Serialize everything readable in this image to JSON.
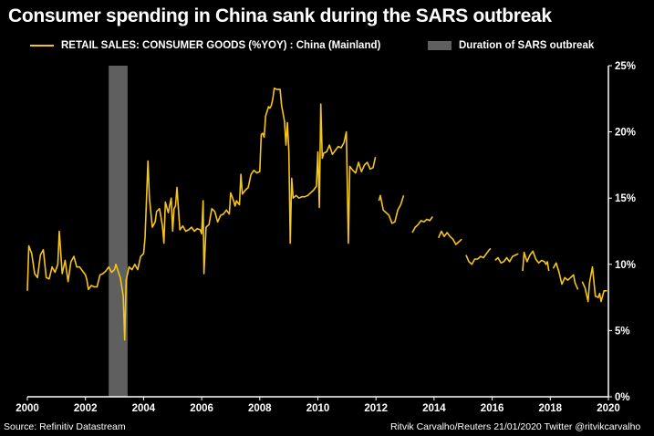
{
  "title": "Consumer spending in China sank during the SARS outbreak",
  "legend": {
    "series_label": "RETAIL SALES: CONSUMER GOODS (%YOY) : China (Mainland)",
    "shade_label": "Duration of SARS outbreak"
  },
  "footer": {
    "source": "Source: Refinitiv Datastream",
    "credit": "Ritvik Carvalho/Reuters 21/01/2020 Twitter @ritvikcarvalho"
  },
  "colors": {
    "line": "#f5c518",
    "shade": "#5f5f5f",
    "background": "#000000",
    "axis": "#ffffff"
  },
  "chart_data": {
    "type": "line",
    "title": "Consumer spending in China sank during the SARS outbreak",
    "xlabel": "",
    "ylabel": "",
    "xlim": [
      2000,
      2020
    ],
    "ylim": [
      0,
      25
    ],
    "x_ticks": [
      2000,
      2002,
      2004,
      2006,
      2008,
      2010,
      2012,
      2014,
      2016,
      2018,
      2020
    ],
    "x_tick_labels": [
      "2000",
      "2002",
      "2004",
      "2006",
      "2008",
      "2010",
      "2012",
      "2014",
      "2016",
      "2018",
      "2020"
    ],
    "y_ticks": [
      0,
      5,
      10,
      15,
      20,
      25
    ],
    "y_tick_labels": [
      "0%",
      "5%",
      "10%",
      "15%",
      "20%",
      "25%"
    ],
    "y_axis_side": "right",
    "shaded_regions": [
      {
        "label": "Duration of SARS outbreak",
        "start": 2002.8,
        "end": 2003.45
      }
    ],
    "series": [
      {
        "name": "RETAIL SALES: CONSUMER GOODS (%YOY) : China (Mainland)",
        "segments": [
          [
            [
              2000.0,
              8.0
            ],
            [
              2000.05,
              11.4
            ],
            [
              2000.15,
              10.8
            ],
            [
              2000.25,
              9.3
            ],
            [
              2000.35,
              9.0
            ],
            [
              2000.45,
              10.7
            ],
            [
              2000.55,
              11.1
            ],
            [
              2000.65,
              9.0
            ],
            [
              2000.75,
              8.9
            ],
            [
              2000.85,
              9.8
            ],
            [
              2000.95,
              9.4
            ],
            [
              2001.05,
              10.0
            ],
            [
              2001.1,
              12.5
            ],
            [
              2001.2,
              9.3
            ],
            [
              2001.3,
              10.3
            ],
            [
              2001.4,
              8.7
            ],
            [
              2001.5,
              10.2
            ],
            [
              2001.6,
              10.6
            ],
            [
              2001.7,
              9.8
            ],
            [
              2001.8,
              9.8
            ],
            [
              2001.9,
              9.5
            ],
            [
              2002.0,
              9.2
            ],
            [
              2002.05,
              8.8
            ],
            [
              2002.1,
              8.1
            ],
            [
              2002.2,
              8.4
            ],
            [
              2002.3,
              8.3
            ],
            [
              2002.4,
              8.3
            ],
            [
              2002.5,
              9.2
            ],
            [
              2002.6,
              9.3
            ],
            [
              2002.7,
              9.5
            ],
            [
              2002.8,
              9.8
            ],
            [
              2002.9,
              9.4
            ],
            [
              2003.0,
              9.6
            ],
            [
              2003.05,
              10.0
            ],
            [
              2003.15,
              9.3
            ],
            [
              2003.2,
              9.0
            ],
            [
              2003.25,
              8.3
            ],
            [
              2003.3,
              7.6
            ],
            [
              2003.35,
              4.3
            ],
            [
              2003.4,
              8.8
            ],
            [
              2003.5,
              9.8
            ],
            [
              2003.6,
              9.6
            ],
            [
              2003.7,
              10.0
            ],
            [
              2003.8,
              9.6
            ],
            [
              2003.9,
              10.6
            ],
            [
              2004.0,
              10.8
            ],
            [
              2004.05,
              12.0
            ],
            [
              2004.15,
              17.8
            ],
            [
              2004.2,
              15.0
            ],
            [
              2004.3,
              12.8
            ],
            [
              2004.4,
              13.2
            ],
            [
              2004.45,
              14.0
            ],
            [
              2004.55,
              14.2
            ],
            [
              2004.65,
              12.9
            ],
            [
              2004.7,
              11.6
            ],
            [
              2004.75,
              14.7
            ],
            [
              2004.85,
              13.9
            ],
            [
              2004.95,
              15.0
            ],
            [
              2005.0,
              12.5
            ],
            [
              2005.05,
              14.2
            ],
            [
              2005.1,
              14.4
            ],
            [
              2005.15,
              15.8
            ],
            [
              2005.25,
              12.6
            ],
            [
              2005.35,
              12.9
            ],
            [
              2005.45,
              12.5
            ],
            [
              2005.55,
              12.6
            ],
            [
              2005.65,
              12.8
            ],
            [
              2005.75,
              12.5
            ],
            [
              2005.85,
              12.7
            ],
            [
              2005.95,
              12.6
            ],
            [
              2006.0,
              12.3
            ],
            [
              2006.05,
              14.8
            ],
            [
              2006.08,
              9.3
            ],
            [
              2006.15,
              12.8
            ],
            [
              2006.25,
              13.0
            ],
            [
              2006.35,
              14.2
            ],
            [
              2006.45,
              14.0
            ],
            [
              2006.55,
              13.2
            ],
            [
              2006.65,
              13.7
            ],
            [
              2006.75,
              13.8
            ],
            [
              2006.85,
              14.1
            ],
            [
              2006.95,
              13.8
            ],
            [
              2007.0,
              15.4
            ],
            [
              2007.1,
              14.8
            ],
            [
              2007.15,
              14.4
            ],
            [
              2007.2,
              14.8
            ],
            [
              2007.3,
              14.5
            ],
            [
              2007.35,
              16.8
            ],
            [
              2007.4,
              15.3
            ],
            [
              2007.5,
              15.6
            ],
            [
              2007.6,
              15.8
            ],
            [
              2007.7,
              16.8
            ],
            [
              2007.8,
              17.1
            ],
            [
              2007.9,
              16.9
            ],
            [
              2008.0,
              17.0
            ],
            [
              2008.05,
              19.8
            ],
            [
              2008.1,
              19.9
            ],
            [
              2008.15,
              19.6
            ],
            [
              2008.2,
              21.2
            ],
            [
              2008.3,
              21.9
            ],
            [
              2008.35,
              21.8
            ],
            [
              2008.4,
              22.0
            ],
            [
              2008.45,
              22.5
            ],
            [
              2008.5,
              23.3
            ],
            [
              2008.6,
              23.2
            ],
            [
              2008.7,
              23.2
            ],
            [
              2008.75,
              22.0
            ],
            [
              2008.85,
              20.8
            ],
            [
              2008.9,
              19.0
            ],
            [
              2008.95,
              20.7
            ],
            [
              2009.0,
              18.5
            ],
            [
              2009.05,
              11.6
            ],
            [
              2009.1,
              16.5
            ],
            [
              2009.15,
              15.0
            ],
            [
              2009.25,
              15.2
            ],
            [
              2009.35,
              15.0
            ],
            [
              2009.45,
              15.1
            ],
            [
              2009.55,
              15.1
            ],
            [
              2009.65,
              15.2
            ],
            [
              2009.75,
              15.4
            ],
            [
              2009.85,
              15.6
            ],
            [
              2009.95,
              15.9
            ],
            [
              2010.0,
              18.5
            ],
            [
              2010.05,
              14.3
            ],
            [
              2010.1,
              22.1
            ],
            [
              2010.15,
              18.0
            ],
            [
              2010.2,
              18.4
            ],
            [
              2010.3,
              18.5
            ],
            [
              2010.4,
              19.0
            ],
            [
              2010.5,
              18.3
            ],
            [
              2010.6,
              18.6
            ],
            [
              2010.7,
              18.9
            ],
            [
              2010.8,
              18.8
            ],
            [
              2010.9,
              19.2
            ],
            [
              2010.98,
              20.0
            ],
            [
              2011.05,
              11.6
            ],
            [
              2011.1,
              17.4
            ],
            [
              2011.2,
              17.1
            ],
            [
              2011.3,
              16.9
            ],
            [
              2011.4,
              17.7
            ],
            [
              2011.5,
              17.0
            ],
            [
              2011.6,
              17.5
            ],
            [
              2011.7,
              17.7
            ],
            [
              2011.8,
              17.2
            ],
            [
              2011.9,
              17.3
            ],
            [
              2011.98,
              18.1
            ]
          ],
          [
            [
              2012.1,
              14.8
            ],
            [
              2012.15,
              15.2
            ],
            [
              2012.25,
              14.1
            ],
            [
              2012.35,
              13.9
            ],
            [
              2012.45,
              13.7
            ],
            [
              2012.55,
              13.1
            ],
            [
              2012.65,
              13.2
            ],
            [
              2012.75,
              14.1
            ],
            [
              2012.85,
              14.5
            ],
            [
              2012.95,
              15.2
            ]
          ],
          [
            [
              2013.25,
              12.4
            ],
            [
              2013.35,
              12.8
            ],
            [
              2013.45,
              13.0
            ],
            [
              2013.55,
              13.3
            ],
            [
              2013.65,
              13.2
            ],
            [
              2013.75,
              13.4
            ],
            [
              2013.85,
              13.3
            ],
            [
              2013.95,
              13.6
            ]
          ],
          [
            [
              2014.15,
              12.0
            ],
            [
              2014.25,
              12.5
            ],
            [
              2014.35,
              12.1
            ],
            [
              2014.45,
              12.4
            ],
            [
              2014.55,
              12.1
            ],
            [
              2014.65,
              11.9
            ],
            [
              2014.75,
              11.5
            ],
            [
              2014.85,
              11.7
            ],
            [
              2014.95,
              11.9
            ]
          ],
          [
            [
              2015.1,
              10.7
            ],
            [
              2015.2,
              10.2
            ],
            [
              2015.3,
              10.0
            ],
            [
              2015.4,
              10.4
            ],
            [
              2015.5,
              10.4
            ],
            [
              2015.6,
              10.6
            ],
            [
              2015.7,
              10.5
            ],
            [
              2015.8,
              10.8
            ],
            [
              2015.9,
              11.1
            ],
            [
              2015.95,
              11.2
            ]
          ],
          [
            [
              2016.1,
              10.3
            ],
            [
              2016.2,
              10.5
            ],
            [
              2016.3,
              10.1
            ],
            [
              2016.4,
              10.2
            ],
            [
              2016.5,
              10.5
            ],
            [
              2016.6,
              10.2
            ],
            [
              2016.7,
              10.6
            ],
            [
              2016.8,
              10.7
            ],
            [
              2016.9,
              10.8
            ]
          ],
          [
            [
              2017.05,
              9.5
            ],
            [
              2017.1,
              10.9
            ],
            [
              2017.2,
              10.2
            ],
            [
              2017.3,
              10.7
            ],
            [
              2017.4,
              11.0
            ],
            [
              2017.5,
              10.4
            ],
            [
              2017.6,
              10.1
            ],
            [
              2017.7,
              10.3
            ],
            [
              2017.8,
              10.2
            ],
            [
              2017.85,
              10.0
            ],
            [
              2017.9,
              10.2
            ],
            [
              2017.95,
              9.5
            ]
          ],
          [
            [
              2018.1,
              9.7
            ],
            [
              2018.2,
              10.1
            ],
            [
              2018.3,
              9.4
            ],
            [
              2018.4,
              8.5
            ],
            [
              2018.5,
              9.0
            ],
            [
              2018.6,
              8.8
            ],
            [
              2018.7,
              9.0
            ],
            [
              2018.8,
              9.2
            ],
            [
              2018.85,
              8.6
            ],
            [
              2018.95,
              8.1
            ]
          ],
          [
            [
              2019.1,
              8.7
            ],
            [
              2019.2,
              8.2
            ],
            [
              2019.3,
              7.2
            ],
            [
              2019.35,
              8.6
            ],
            [
              2019.45,
              9.8
            ],
            [
              2019.55,
              7.6
            ],
            [
              2019.65,
              7.5
            ],
            [
              2019.7,
              7.8
            ],
            [
              2019.75,
              7.2
            ],
            [
              2019.85,
              8.0
            ],
            [
              2019.95,
              8.0
            ]
          ]
        ]
      }
    ]
  }
}
